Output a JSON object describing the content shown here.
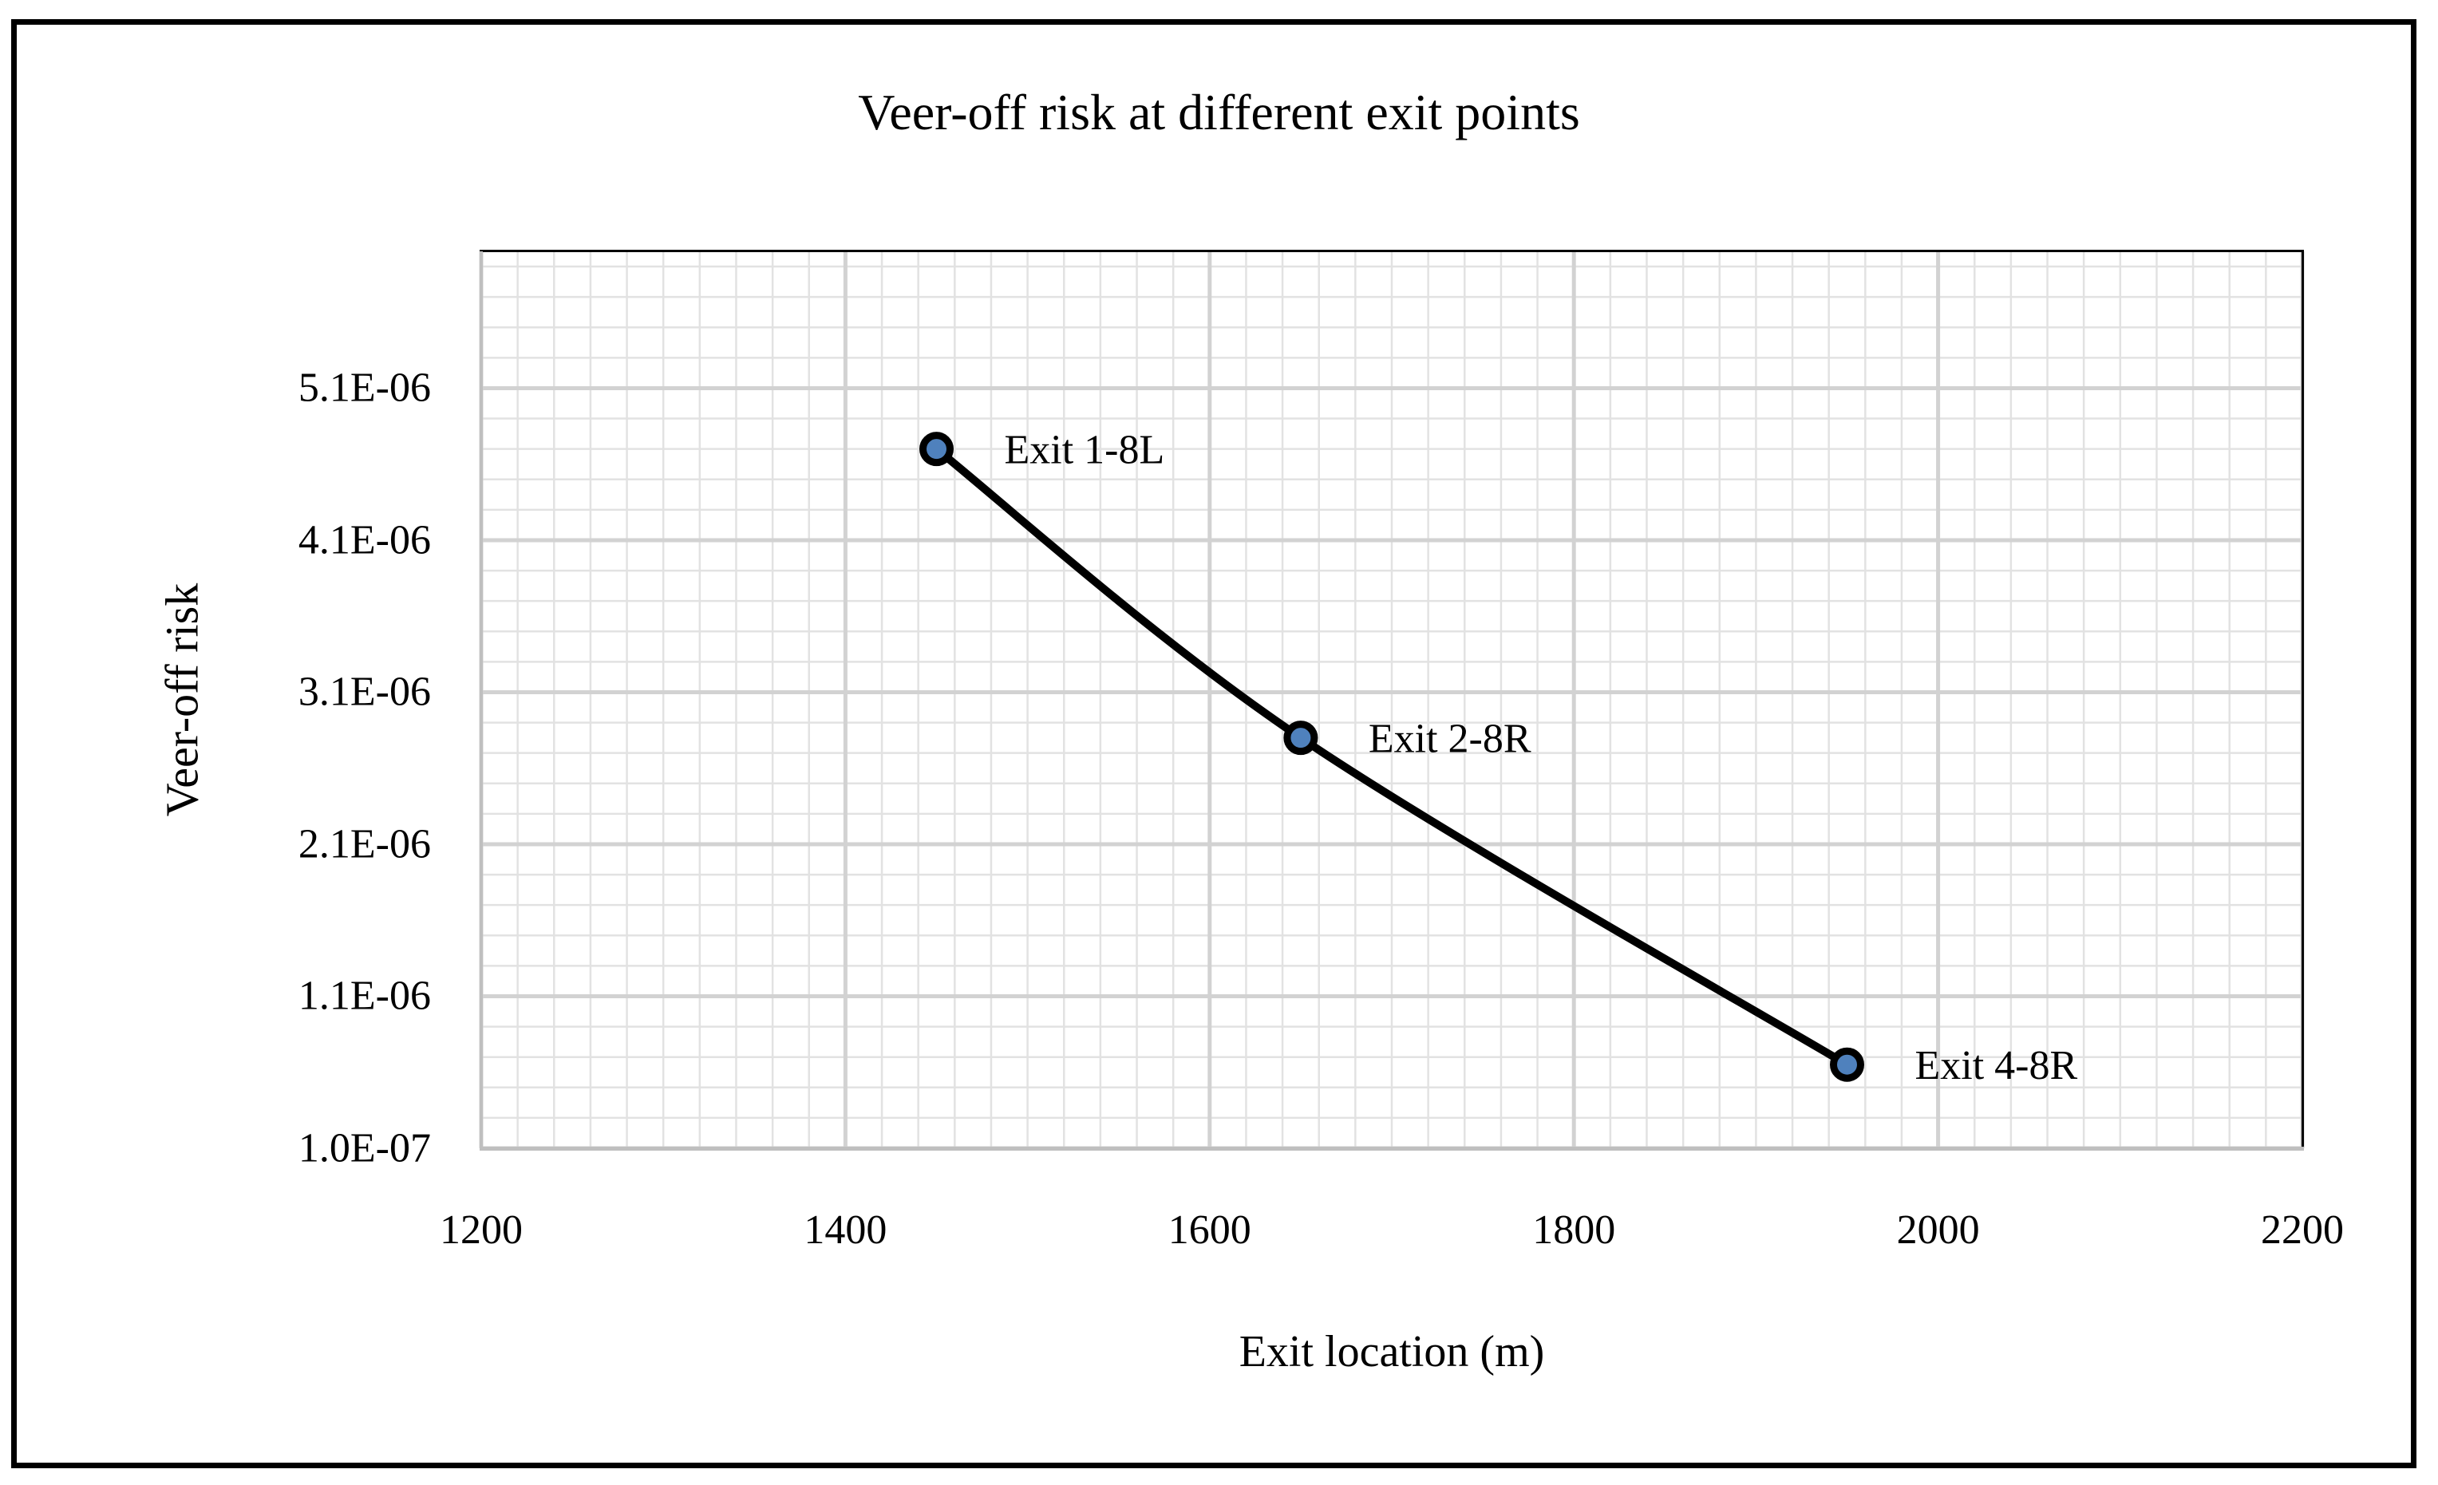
{
  "figure": {
    "background": "#ffffff",
    "border_color": "#000000"
  },
  "chart_data": {
    "type": "line",
    "title": "Veer-off risk at different exit points",
    "xlabel": "Exit location (m)",
    "ylabel": "Veer-off risk",
    "xlim": [
      1200,
      2200
    ],
    "ylim": [
      1e-07,
      6e-06
    ],
    "x_ticks": [
      1200,
      1400,
      1600,
      1800,
      2000,
      2200
    ],
    "y_ticks": [
      {
        "label": "1.0E-07",
        "value": 1e-07
      },
      {
        "label": "1.1E-06",
        "value": 1.1e-06
      },
      {
        "label": "2.1E-06",
        "value": 2.1e-06
      },
      {
        "label": "3.1E-06",
        "value": 3.1e-06
      },
      {
        "label": "4.1E-06",
        "value": 4.1e-06
      },
      {
        "label": "5.1E-06",
        "value": 5.1e-06
      }
    ],
    "grid": {
      "visible": true,
      "minor_x_step": 20,
      "major_x_step": 200,
      "minor_y_step": 2e-07,
      "major_y_step": 1e-06
    },
    "legend": "none",
    "series": [
      {
        "name": "Veer-off risk",
        "smooth": true,
        "points": [
          {
            "x": 1450,
            "y": 4.7e-06,
            "label": "Exit 1-8L"
          },
          {
            "x": 1650,
            "y": 2.8e-06,
            "label": "Exit 2-8R"
          },
          {
            "x": 1950,
            "y": 6.5e-07,
            "label": "Exit 4-8R"
          }
        ]
      }
    ],
    "colors": {
      "line": "#000000",
      "marker_fill": "#4F81BD",
      "marker_edge": "#000000",
      "grid_minor": "#E2E2E2",
      "grid_major": "#D2D2D2",
      "plot_border_dark": "#000000",
      "axis_line": "#BFBFBF",
      "text": "#000000"
    }
  }
}
